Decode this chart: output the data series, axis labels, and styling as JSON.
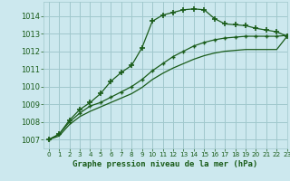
{
  "title": "Graphe pression niveau de la mer (hPa)",
  "background_color": "#cce8ee",
  "grid_color": "#a0c8cc",
  "line_color": "#1a5c1a",
  "xlim": [
    -0.5,
    23
  ],
  "ylim": [
    1006.5,
    1014.8
  ],
  "yticks": [
    1007,
    1008,
    1009,
    1010,
    1011,
    1012,
    1013,
    1014
  ],
  "xticks": [
    0,
    1,
    2,
    3,
    4,
    5,
    6,
    7,
    8,
    9,
    10,
    11,
    12,
    13,
    14,
    15,
    16,
    17,
    18,
    19,
    20,
    21,
    22,
    23
  ],
  "series1_x": [
    0,
    1,
    2,
    3,
    4,
    5,
    6,
    7,
    8,
    9,
    10,
    11,
    12,
    13,
    14,
    15,
    16,
    17,
    18,
    19,
    20,
    21,
    22,
    23
  ],
  "series1_y": [
    1007.0,
    1007.3,
    1008.1,
    1008.7,
    1009.1,
    1009.6,
    1010.3,
    1010.8,
    1011.2,
    1012.2,
    1013.7,
    1014.05,
    1014.2,
    1014.35,
    1014.4,
    1014.35,
    1013.85,
    1013.55,
    1013.5,
    1013.45,
    1013.3,
    1013.2,
    1013.1,
    1012.85
  ],
  "series2_x": [
    0,
    1,
    2,
    3,
    4,
    5,
    6,
    7,
    8,
    9,
    10,
    11,
    12,
    13,
    14,
    15,
    16,
    17,
    18,
    19,
    20,
    21,
    22,
    23
  ],
  "series2_y": [
    1007.0,
    1007.3,
    1008.0,
    1008.5,
    1008.9,
    1009.1,
    1009.4,
    1009.7,
    1010.0,
    1010.4,
    1010.9,
    1011.3,
    1011.7,
    1012.0,
    1012.3,
    1012.5,
    1012.65,
    1012.75,
    1012.8,
    1012.85,
    1012.85,
    1012.85,
    1012.85,
    1012.9
  ],
  "series3_x": [
    0,
    1,
    2,
    3,
    4,
    5,
    6,
    7,
    8,
    9,
    10,
    11,
    12,
    13,
    14,
    15,
    16,
    17,
    18,
    19,
    20,
    21,
    22,
    23
  ],
  "series3_y": [
    1007.0,
    1007.2,
    1007.85,
    1008.3,
    1008.6,
    1008.85,
    1009.1,
    1009.35,
    1009.6,
    1009.95,
    1010.4,
    1010.75,
    1011.05,
    1011.3,
    1011.55,
    1011.75,
    1011.9,
    1012.0,
    1012.05,
    1012.1,
    1012.1,
    1012.1,
    1012.1,
    1012.85
  ]
}
